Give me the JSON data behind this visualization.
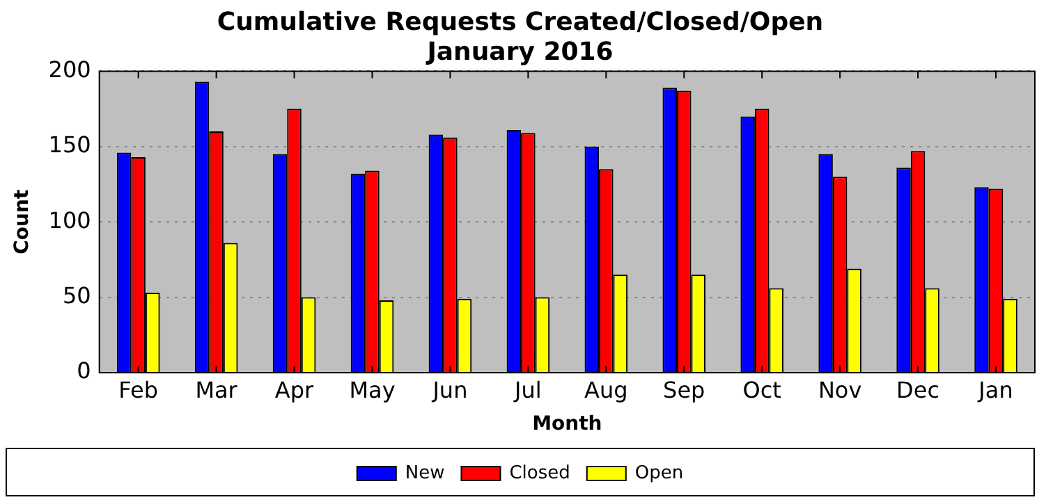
{
  "chart_data": {
    "type": "bar",
    "title": [
      "Cumulative Requests Created/Closed/Open",
      "January 2016"
    ],
    "xlabel": "Month",
    "ylabel": "Count",
    "categories": [
      "Feb",
      "Mar",
      "Apr",
      "May",
      "Jun",
      "Jul",
      "Aug",
      "Sep",
      "Oct",
      "Nov",
      "Dec",
      "Jan"
    ],
    "series": [
      {
        "name": "New",
        "color": "#0000ff",
        "values": [
          146,
          193,
          145,
          132,
          158,
          161,
          150,
          189,
          170,
          145,
          136,
          123
        ]
      },
      {
        "name": "Closed",
        "color": "#ff0000",
        "values": [
          143,
          160,
          175,
          134,
          156,
          159,
          135,
          187,
          175,
          130,
          147,
          122
        ]
      },
      {
        "name": "Open",
        "color": "#ffff00",
        "values": [
          53,
          86,
          50,
          48,
          49,
          50,
          65,
          65,
          56,
          69,
          56,
          49
        ]
      }
    ],
    "ylim": [
      0,
      200
    ],
    "yticks": [
      0,
      50,
      100,
      150,
      200
    ],
    "grid": "y",
    "legend": "bottom"
  }
}
